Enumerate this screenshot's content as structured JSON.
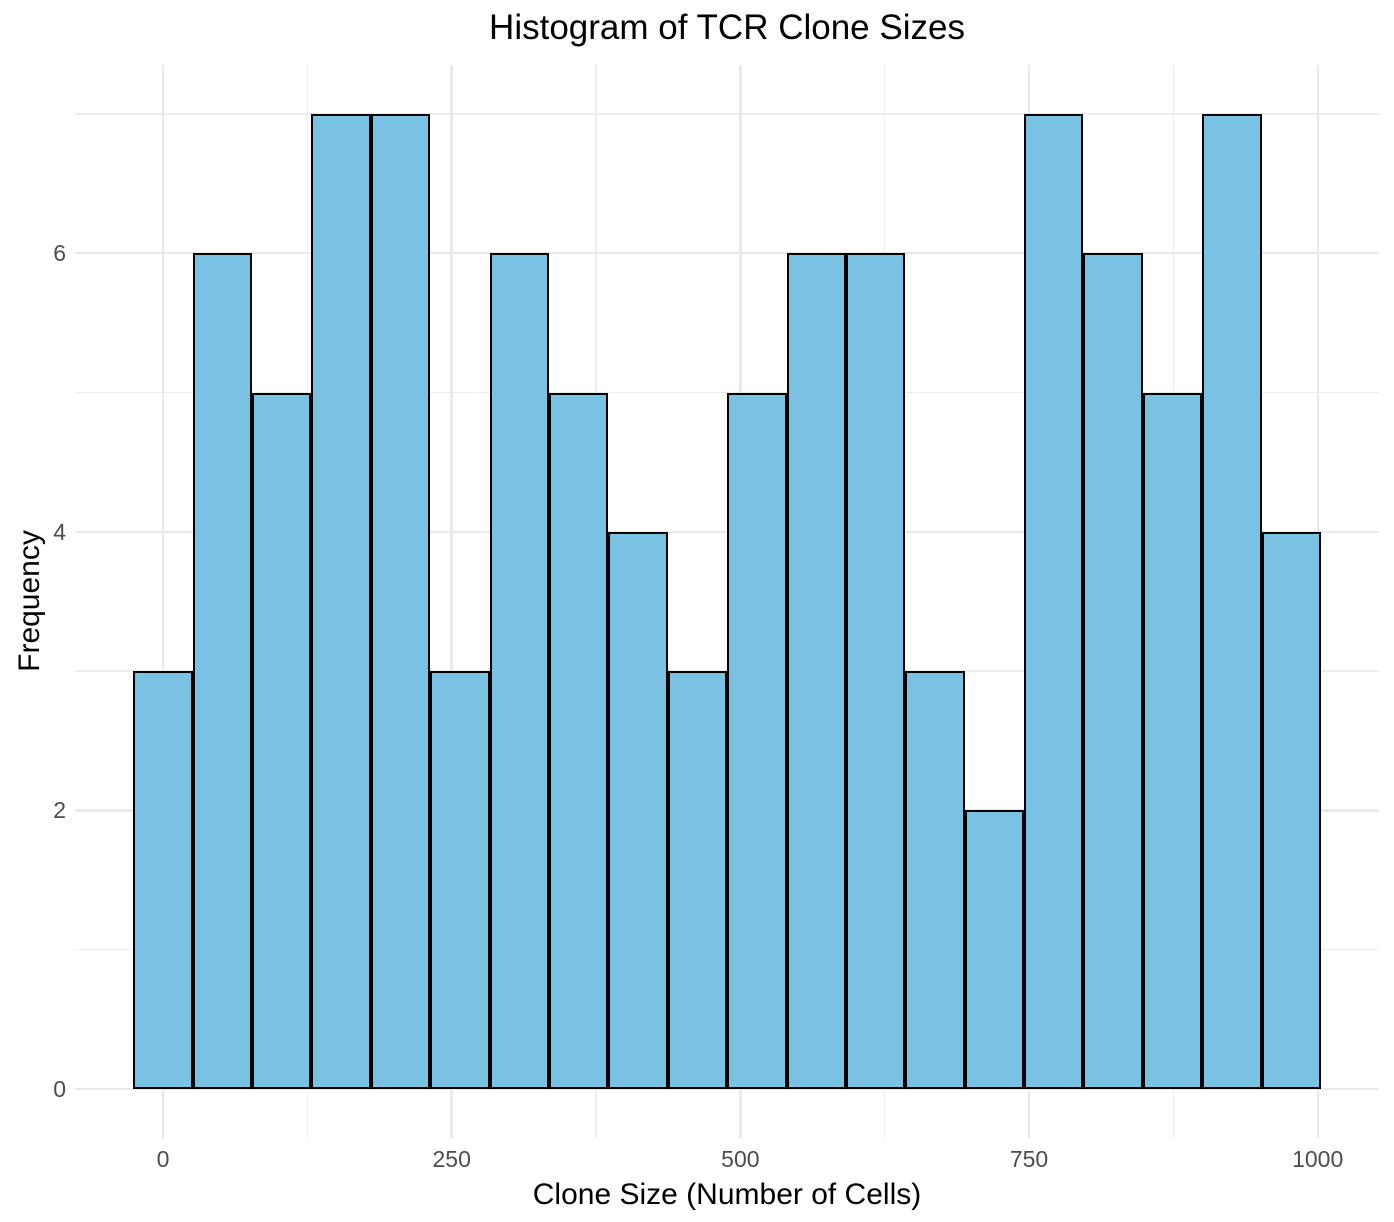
{
  "title": "Histogram of TCR Clone Sizes",
  "axes": {
    "x": {
      "label": "Clone Size (Number of Cells)",
      "ticks": [
        0,
        250,
        500,
        750,
        1000
      ],
      "minor_gridlines": [
        125,
        375,
        625,
        875
      ]
    },
    "y": {
      "label": "Frequency",
      "ticks": [
        0,
        2,
        4,
        6
      ],
      "minor_gridlines": [
        1,
        3,
        5,
        7
      ]
    }
  },
  "chart_data": {
    "type": "histogram",
    "title": "Histogram of TCR Clone Sizes",
    "xlabel": "Clone Size (Number of Cells)",
    "ylabel": "Frequency",
    "bins": 20,
    "bin_width": 51.4,
    "bin_edges": [
      -25.7,
      25.7,
      77.1,
      128.6,
      180.0,
      231.4,
      282.8,
      334.3,
      385.7,
      437.1,
      488.5,
      540.0,
      591.4,
      642.8,
      694.2,
      745.7,
      797.1,
      848.5,
      899.9,
      951.4,
      1002.8
    ],
    "counts": [
      3,
      6,
      5,
      7,
      7,
      3,
      6,
      5,
      4,
      3,
      5,
      6,
      6,
      3,
      2,
      7,
      6,
      5,
      7,
      4
    ],
    "total_count": 100,
    "x_ticks": [
      0,
      250,
      500,
      750,
      1000
    ],
    "y_ticks": [
      0,
      2,
      4,
      6
    ],
    "xlim": [
      -77,
      1054
    ],
    "ylim": [
      0,
      7.35
    ],
    "grid": "major+minor",
    "legend": false
  },
  "style": {
    "bar_fill": "#79C2E3",
    "bar_border": "#000000",
    "grid_major_color": "#E9E9E9",
    "grid_minor_color": "#EDEDED",
    "tick_label_color": "#4D4D4D",
    "text_color": "#000000",
    "background": "#FFFFFF"
  }
}
